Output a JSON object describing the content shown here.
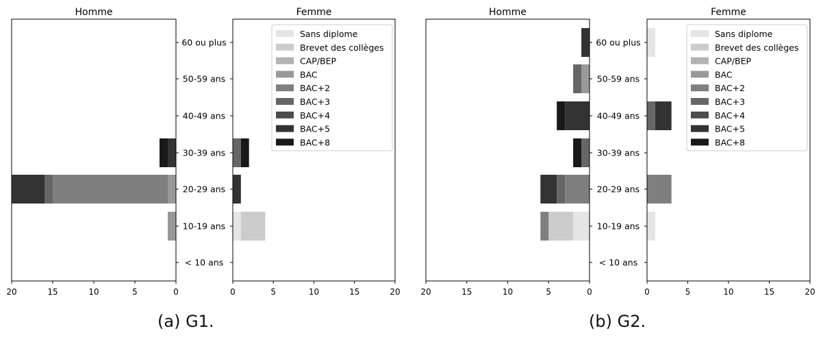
{
  "colors": {
    "levels": [
      "#e5e5e5",
      "#cccccc",
      "#b2b2b2",
      "#999999",
      "#7f7f7f",
      "#666666",
      "#4c4c4c",
      "#333333",
      "#191919"
    ]
  },
  "chart_data": [
    {
      "type": "bar",
      "orientation": "horizontal-stacked-pyramid",
      "caption": "(a) G1.",
      "categories": [
        "< 10 ans",
        "10-19 ans",
        "20-29 ans",
        "30-39 ans",
        "40-49 ans",
        "50-59 ans",
        "60 ou plus"
      ],
      "legend": [
        "Sans diplome",
        "Brevet des collèges",
        "CAP/BEP",
        "BAC",
        "BAC+2",
        "BAC+3",
        "BAC+4",
        "BAC+5",
        "BAC+8"
      ],
      "legend_position": "top-right",
      "panels": [
        {
          "title": "Homme",
          "xlim": [
            20,
            0
          ],
          "xticks": [
            20,
            15,
            10,
            5,
            0
          ],
          "values": [
            [
              0,
              0,
              0,
              0,
              0,
              0,
              0
            ],
            [
              0,
              0,
              0,
              0,
              0,
              0,
              0
            ],
            [
              0,
              0,
              0,
              0,
              0,
              0,
              0
            ],
            [
              0,
              1,
              1,
              0,
              0,
              0,
              0
            ],
            [
              0,
              0,
              14,
              0,
              0,
              0,
              0
            ],
            [
              0,
              0,
              1,
              0,
              0,
              0,
              0
            ],
            [
              0,
              0,
              0,
              0,
              0,
              0,
              0
            ],
            [
              0,
              0,
              4,
              1,
              0,
              0,
              0
            ],
            [
              0,
              0,
              0,
              1,
              0,
              0,
              0
            ]
          ]
        },
        {
          "title": "Femme",
          "xlim": [
            0,
            20
          ],
          "xticks": [
            0,
            5,
            10,
            15,
            20
          ],
          "values": [
            [
              0,
              1,
              0,
              0,
              0,
              0,
              0
            ],
            [
              0,
              3,
              0,
              0,
              0,
              0,
              0
            ],
            [
              0,
              0,
              0,
              0,
              0,
              0,
              0
            ],
            [
              0,
              0,
              0,
              0,
              0,
              0,
              0
            ],
            [
              0,
              0,
              0,
              0,
              0,
              0,
              0
            ],
            [
              0,
              0,
              0,
              1,
              0,
              0,
              0
            ],
            [
              0,
              0,
              0,
              0,
              0,
              0,
              0
            ],
            [
              0,
              0,
              1,
              0,
              0,
              0,
              0
            ],
            [
              0,
              0,
              0,
              1,
              0,
              0,
              0
            ]
          ]
        }
      ]
    },
    {
      "type": "bar",
      "orientation": "horizontal-stacked-pyramid",
      "caption": "(b) G2.",
      "categories": [
        "< 10 ans",
        "10-19 ans",
        "20-29 ans",
        "30-39 ans",
        "40-49 ans",
        "50-59 ans",
        "60 ou plus"
      ],
      "legend": [
        "Sans diplome",
        "Brevet des collèges",
        "CAP/BEP",
        "BAC",
        "BAC+2",
        "BAC+3",
        "BAC+4",
        "BAC+5",
        "BAC+8"
      ],
      "legend_position": "top-right",
      "panels": [
        {
          "title": "Homme",
          "xlim": [
            20,
            0
          ],
          "xticks": [
            20,
            15,
            10,
            5,
            0
          ],
          "values": [
            [
              0,
              2,
              0,
              0,
              0,
              0,
              0
            ],
            [
              0,
              3,
              0,
              0,
              0,
              0,
              0
            ],
            [
              0,
              0,
              0,
              0,
              0,
              0,
              0
            ],
            [
              0,
              0,
              0,
              0,
              0,
              1,
              0
            ],
            [
              0,
              1,
              3,
              0,
              0,
              0,
              0
            ],
            [
              0,
              0,
              1,
              1,
              0,
              1,
              0
            ],
            [
              0,
              0,
              0,
              0,
              0,
              0,
              0
            ],
            [
              0,
              0,
              2,
              0,
              3,
              0,
              1
            ],
            [
              0,
              0,
              0,
              1,
              1,
              0,
              0
            ]
          ]
        },
        {
          "title": "Femme",
          "xlim": [
            0,
            20
          ],
          "xticks": [
            0,
            5,
            10,
            15,
            20
          ],
          "values": [
            [
              0,
              1,
              0,
              0,
              0,
              0,
              1
            ],
            [
              0,
              0,
              0,
              0,
              0,
              0,
              0
            ],
            [
              0,
              0,
              0,
              0,
              0,
              0,
              0
            ],
            [
              0,
              0,
              0,
              0,
              0,
              0,
              0
            ],
            [
              0,
              0,
              3,
              0,
              0,
              0,
              0
            ],
            [
              0,
              0,
              0,
              0,
              1,
              0,
              0
            ],
            [
              0,
              0,
              0,
              0,
              0,
              0,
              0
            ],
            [
              0,
              0,
              0,
              0,
              2,
              0,
              0
            ],
            [
              0,
              0,
              0,
              0,
              0,
              0,
              0
            ]
          ]
        }
      ]
    }
  ]
}
